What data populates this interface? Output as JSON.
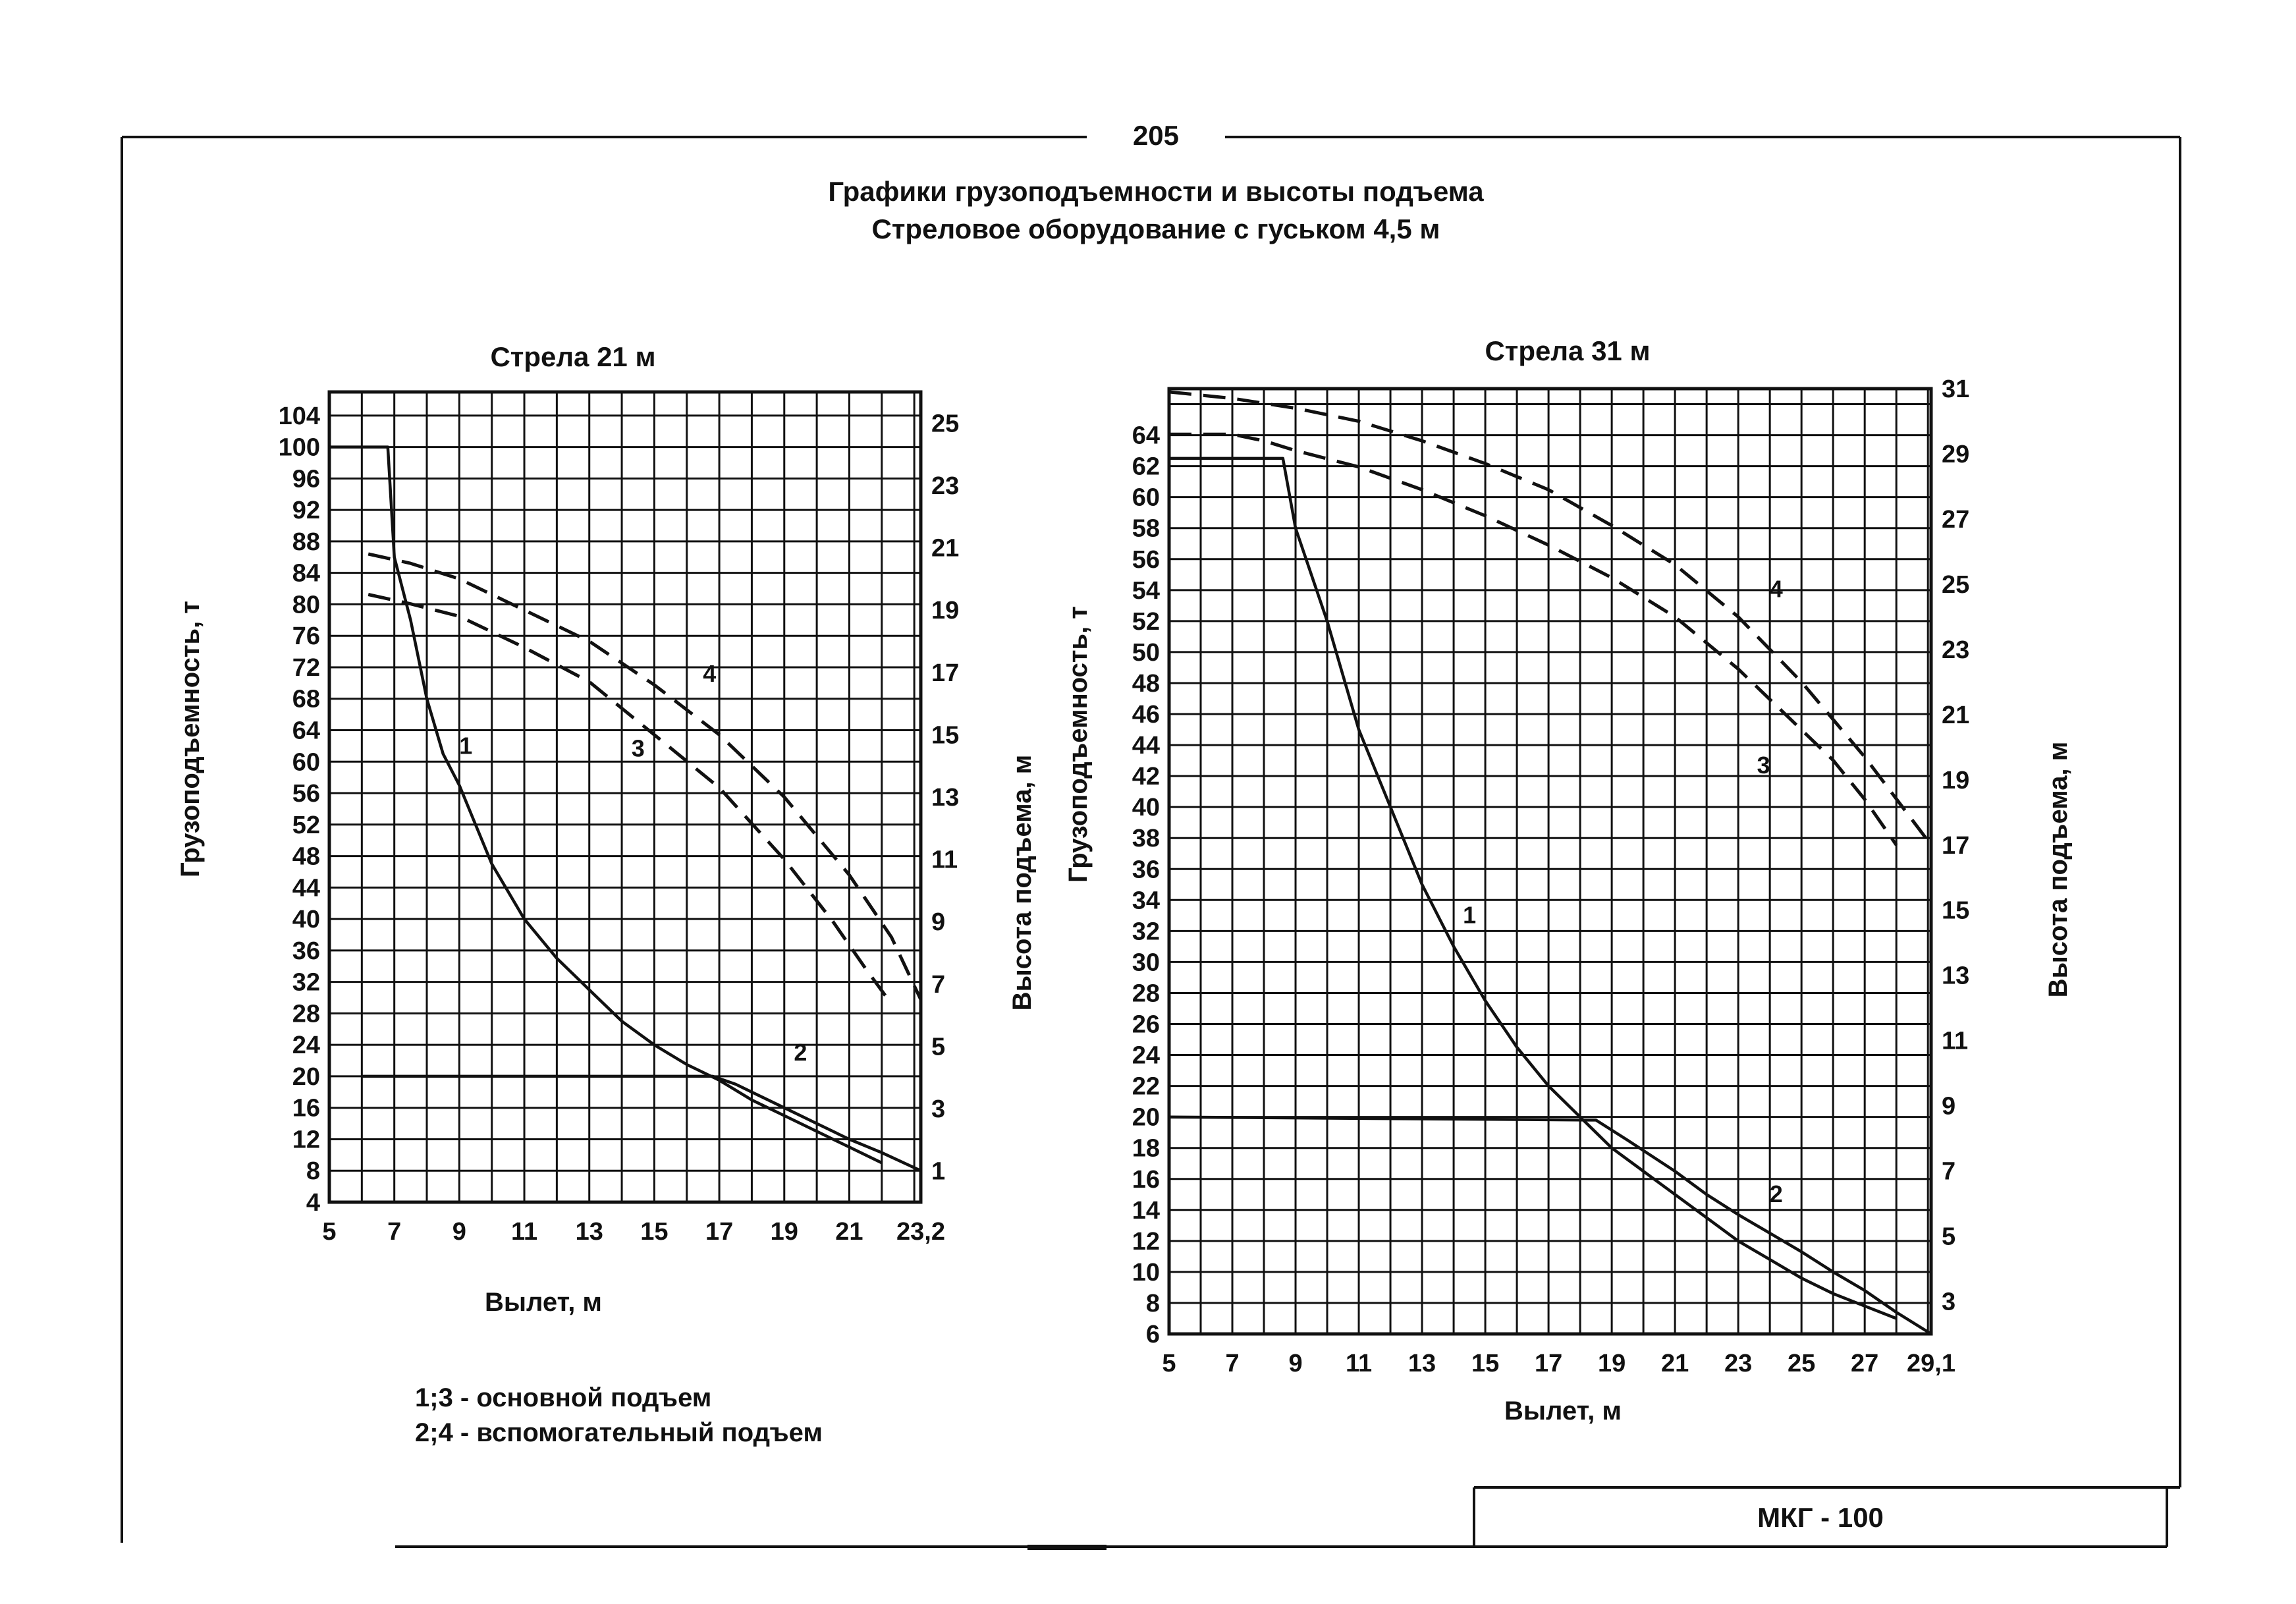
{
  "page": {
    "number": "205",
    "title_line1": "Графики грузоподъемности и высоты подъема",
    "title_line2": "Стреловое оборудование с гуськом 4,5 м",
    "stamp": "МКГ - 100"
  },
  "legend": {
    "line1": "1;3 - основной подъем",
    "line2": "2;4 - вспомогательный подъем"
  },
  "colors": {
    "ink": "#111111",
    "paper": "#ffffff"
  },
  "chart_data": [
    {
      "type": "line",
      "title": "Стрела 21 м",
      "xlabel": "Вылет, м",
      "ylabel": "Грузоподъемность, т",
      "y2label": "Высота подъема, м",
      "xlim": [
        5,
        23.2
      ],
      "ylim": [
        4,
        107
      ],
      "y2lim": [
        0,
        26
      ],
      "grid": true,
      "x_ticks": [
        {
          "v": 5,
          "label": "5"
        },
        {
          "v": 7,
          "label": "7"
        },
        {
          "v": 9,
          "label": "9"
        },
        {
          "v": 11,
          "label": "11"
        },
        {
          "v": 13,
          "label": "13"
        },
        {
          "v": 15,
          "label": "15"
        },
        {
          "v": 17,
          "label": "17"
        },
        {
          "v": 19,
          "label": "19"
        },
        {
          "v": 21,
          "label": "21"
        },
        {
          "v": 23.2,
          "label": "23,2"
        }
      ],
      "y_ticks": [
        4,
        8,
        12,
        16,
        20,
        24,
        28,
        32,
        36,
        40,
        44,
        48,
        52,
        56,
        60,
        64,
        68,
        72,
        76,
        80,
        84,
        88,
        92,
        96,
        100,
        104
      ],
      "y2_ticks": [
        1,
        3,
        5,
        7,
        9,
        11,
        13,
        15,
        17,
        19,
        21,
        23,
        25
      ],
      "x_grid_step": 1,
      "y_grid_step": 4,
      "series": [
        {
          "name": "1",
          "label": "1",
          "axis": "y",
          "dash": false,
          "points": [
            [
              5,
              100
            ],
            [
              6.8,
              100
            ],
            [
              7,
              86
            ],
            [
              7.5,
              78
            ],
            [
              8,
              68
            ],
            [
              8.5,
              61
            ],
            [
              9,
              57
            ],
            [
              9.5,
              52
            ],
            [
              10,
              47
            ],
            [
              11,
              40
            ],
            [
              12,
              35
            ],
            [
              13,
              31
            ],
            [
              14,
              27
            ],
            [
              15,
              24
            ],
            [
              16,
              21.5
            ],
            [
              17,
              19.5
            ],
            [
              18,
              17
            ],
            [
              19,
              15
            ],
            [
              20,
              13
            ],
            [
              21,
              11
            ],
            [
              22,
              9
            ]
          ],
          "label_at": [
            9.2,
            61
          ]
        },
        {
          "name": "2",
          "label": "2",
          "axis": "y",
          "dash": false,
          "points": [
            [
              6,
              20
            ],
            [
              16.8,
              20
            ],
            [
              17.5,
              19
            ],
            [
              18,
              18
            ],
            [
              19,
              16
            ],
            [
              20,
              14
            ],
            [
              21,
              12
            ],
            [
              22,
              10.3
            ],
            [
              23.2,
              8
            ]
          ],
          "label_at": [
            19.5,
            22
          ]
        },
        {
          "name": "3",
          "label": "3",
          "axis": "y2",
          "dash": true,
          "points": [
            [
              6.2,
              19.5
            ],
            [
              7.5,
              19.2
            ],
            [
              9,
              18.8
            ],
            [
              11,
              17.8
            ],
            [
              13,
              16.7
            ],
            [
              15,
              15
            ],
            [
              17,
              13.3
            ],
            [
              19,
              11
            ],
            [
              20.5,
              9
            ],
            [
              21.5,
              7.5
            ],
            [
              22.2,
              6.5
            ]
          ],
          "label_at": [
            14.5,
            14.3
          ]
        },
        {
          "name": "4",
          "label": "4",
          "axis": "y2",
          "dash": true,
          "points": [
            [
              6.2,
              20.8
            ],
            [
              7.5,
              20.5
            ],
            [
              9,
              20
            ],
            [
              11,
              19
            ],
            [
              13,
              18
            ],
            [
              15,
              16.6
            ],
            [
              17,
              15
            ],
            [
              19,
              13
            ],
            [
              21,
              10.5
            ],
            [
              22.3,
              8.5
            ],
            [
              23.2,
              6.5
            ]
          ],
          "label_at": [
            16.7,
            16.7
          ]
        }
      ]
    },
    {
      "type": "line",
      "title": "Стрела 31 м",
      "xlabel": "Вылет, м",
      "ylabel": "Грузоподъемность, т",
      "y2label": "Высота подъема, м",
      "xlim": [
        5,
        29.1
      ],
      "ylim": [
        6,
        67
      ],
      "y2lim": [
        2,
        31
      ],
      "grid": true,
      "x_ticks": [
        {
          "v": 5,
          "label": "5"
        },
        {
          "v": 7,
          "label": "7"
        },
        {
          "v": 9,
          "label": "9"
        },
        {
          "v": 11,
          "label": "11"
        },
        {
          "v": 13,
          "label": "13"
        },
        {
          "v": 15,
          "label": "15"
        },
        {
          "v": 17,
          "label": "17"
        },
        {
          "v": 19,
          "label": "19"
        },
        {
          "v": 21,
          "label": "21"
        },
        {
          "v": 23,
          "label": "23"
        },
        {
          "v": 25,
          "label": "25"
        },
        {
          "v": 27,
          "label": "27"
        },
        {
          "v": 29.1,
          "label": "29,1"
        }
      ],
      "y_ticks": [
        6,
        8,
        10,
        12,
        14,
        16,
        18,
        20,
        22,
        24,
        26,
        28,
        30,
        32,
        34,
        36,
        38,
        40,
        42,
        44,
        46,
        48,
        50,
        52,
        54,
        56,
        58,
        60,
        62,
        64
      ],
      "y2_ticks": [
        3,
        5,
        7,
        9,
        11,
        13,
        15,
        17,
        19,
        21,
        23,
        25,
        27,
        29,
        31
      ],
      "x_grid_step": 1,
      "y_grid_step": 2,
      "series": [
        {
          "name": "1",
          "label": "1",
          "axis": "y",
          "dash": false,
          "points": [
            [
              5,
              62.5
            ],
            [
              8.6,
              62.5
            ],
            [
              9,
              58
            ],
            [
              10,
              52
            ],
            [
              11,
              45
            ],
            [
              12,
              40
            ],
            [
              13,
              35
            ],
            [
              14,
              31
            ],
            [
              15,
              27.5
            ],
            [
              16,
              24.5
            ],
            [
              17,
              22
            ],
            [
              18,
              20
            ],
            [
              19,
              18
            ],
            [
              20,
              16.5
            ],
            [
              21,
              15
            ],
            [
              22,
              13.5
            ],
            [
              23,
              12
            ],
            [
              24,
              10.8
            ],
            [
              25,
              9.6
            ],
            [
              26,
              8.6
            ],
            [
              27,
              7.8
            ],
            [
              28,
              7
            ]
          ],
          "label_at": [
            14.5,
            32.5
          ]
        },
        {
          "name": "2",
          "label": "2",
          "axis": "y",
          "dash": false,
          "points": [
            [
              5,
              20
            ],
            [
              18.5,
              19.8
            ],
            [
              19.5,
              18.5
            ],
            [
              21,
              16.5
            ],
            [
              22,
              15
            ],
            [
              23,
              13.7
            ],
            [
              24,
              12.5
            ],
            [
              25,
              11.3
            ],
            [
              26,
              10
            ],
            [
              27,
              8.8
            ],
            [
              28,
              7.4
            ],
            [
              29.1,
              6
            ]
          ],
          "label_at": [
            24.2,
            14.5
          ]
        },
        {
          "name": "3",
          "label": "3",
          "axis": "y2",
          "dash": true,
          "points": [
            [
              5,
              29.6
            ],
            [
              7,
              29.6
            ],
            [
              8,
              29.4
            ],
            [
              9,
              29.1
            ],
            [
              11,
              28.6
            ],
            [
              13,
              27.9
            ],
            [
              15,
              27.1
            ],
            [
              17,
              26.2
            ],
            [
              19,
              25.2
            ],
            [
              21,
              24
            ],
            [
              23,
              22.4
            ],
            [
              24.5,
              21
            ],
            [
              26,
              19.6
            ],
            [
              27,
              18.4
            ],
            [
              28,
              17
            ]
          ],
          "label_at": [
            23.8,
            19.2
          ]
        },
        {
          "name": "4",
          "label": "4",
          "axis": "y2",
          "dash": true,
          "points": [
            [
              5,
              30.9
            ],
            [
              7,
              30.7
            ],
            [
              9,
              30.4
            ],
            [
              11,
              30
            ],
            [
              13,
              29.4
            ],
            [
              15,
              28.7
            ],
            [
              17,
              27.9
            ],
            [
              19,
              26.8
            ],
            [
              21,
              25.6
            ],
            [
              23,
              24
            ],
            [
              25,
              22
            ],
            [
              27,
              19.7
            ],
            [
              29.1,
              17
            ]
          ],
          "label_at": [
            24.2,
            24.6
          ]
        }
      ]
    }
  ]
}
